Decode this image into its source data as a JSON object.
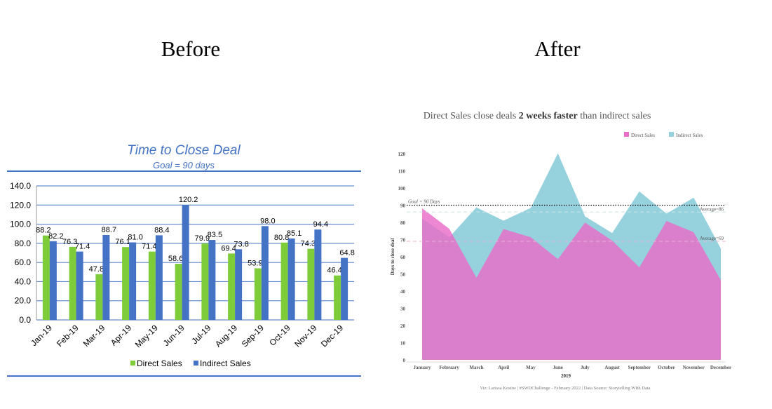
{
  "headings": {
    "before": "Before",
    "after": "After"
  },
  "chart_data": [
    {
      "type": "bar",
      "title": "Time to Close Deal",
      "subtitle": "Goal = 90 days",
      "categories": [
        "Jan-19",
        "Feb-19",
        "Mar-19",
        "Apr-19",
        "May-19",
        "Jun-19",
        "Jul-19",
        "Aug-19",
        "Sep-19",
        "Oct-19",
        "Nov-19",
        "Dec-19"
      ],
      "series": [
        {
          "name": "Direct Sales",
          "color": "#7fcc3a",
          "values": [
            88.2,
            76.3,
            47.8,
            76.1,
            71.4,
            58.6,
            79.9,
            69.4,
            53.9,
            80.8,
            74.3,
            46.4
          ]
        },
        {
          "name": "Indirect Sales",
          "color": "#4472c4",
          "values": [
            82.2,
            71.4,
            88.7,
            81.0,
            88.4,
            120.2,
            83.5,
            73.8,
            98.0,
            85.1,
            94.4,
            64.8
          ]
        }
      ],
      "ylim": [
        0,
        140
      ],
      "yticks": [
        "0.0",
        "20.0",
        "40.0",
        "60.0",
        "80.0",
        "100.0",
        "120.0",
        "140.0"
      ],
      "grid": true,
      "legend": "bottom"
    },
    {
      "type": "area",
      "title_parts": [
        "Direct Sales close deals ",
        "2 weeks faster",
        " than indirect sales"
      ],
      "categories": [
        "January",
        "February",
        "March",
        "April",
        "May",
        "June",
        "July",
        "August",
        "September",
        "October",
        "November",
        "December"
      ],
      "xlabel": "2019",
      "ylabel": "Days to close deal",
      "series": [
        {
          "name": "Indirect Sales",
          "color": "#96d2de",
          "values": [
            82.2,
            71.4,
            88.7,
            81.0,
            88.4,
            120.2,
            83.5,
            73.8,
            98.0,
            85.1,
            94.4,
            64.8
          ]
        },
        {
          "name": "Direct Sales",
          "color": "#e96cc8",
          "values": [
            88.2,
            76.3,
            47.8,
            76.1,
            71.4,
            58.6,
            79.9,
            69.4,
            53.9,
            80.8,
            74.3,
            46.4
          ]
        }
      ],
      "ylim": [
        0,
        120
      ],
      "yticks": [
        "0",
        "10",
        "20",
        "30",
        "40",
        "50",
        "60",
        "70",
        "80",
        "90",
        "100",
        "110",
        "120"
      ],
      "reference_lines": [
        {
          "label": "Goal = 90 Days",
          "value": 90
        },
        {
          "label": "Average=86",
          "value": 86
        },
        {
          "label": "Average=69",
          "value": 69
        }
      ],
      "legend": "top-right",
      "footer": "Viz: Larissa Kostiw | #SWDChallenge - February 2022 | Data Source: Storytelling WIth Data"
    }
  ]
}
